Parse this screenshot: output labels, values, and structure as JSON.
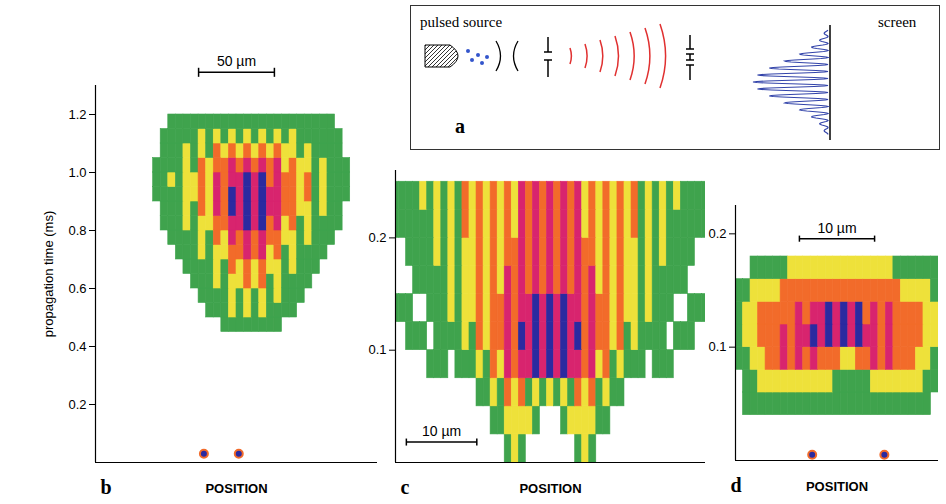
{
  "diagram": {
    "label": "a",
    "source": "pulsed source",
    "screen": "screen"
  },
  "chart_data": [
    {
      "type": "heatmap",
      "label": "b",
      "ylabel": "propagation time (ms)",
      "xlabel": "POSITION",
      "xlim": [
        -83,
        103
      ],
      "ylim": [
        0,
        1.3
      ],
      "yticks": [
        0.2,
        0.4,
        0.6,
        0.8,
        {
          "value": 1,
          "label": "1.0"
        },
        1.2
      ],
      "tick_labels": "y",
      "colors": [
        "#3fa34d",
        "#eee13a",
        "#f26b2a",
        "#d8246e",
        "#2b2aa0"
      ],
      "x_edges": [
        -50,
        -45,
        -40,
        -35,
        -30,
        -25,
        -20,
        -15,
        -10,
        -5,
        0,
        5,
        10,
        15,
        20,
        25,
        30,
        35,
        40,
        45,
        50,
        55,
        60,
        65,
        70,
        75,
        80,
        85,
        90
      ],
      "y_edges": [
        0.45,
        0.5,
        0.55,
        0.6,
        0.65,
        0.7,
        0.75,
        0.8,
        0.85,
        0.9,
        0.95,
        1,
        1.05,
        1.1,
        1.15,
        1.2
      ],
      "values": [
        [
          0,
          0,
          0,
          0,
          0,
          0,
          0,
          0,
          0,
          0,
          1,
          1,
          1,
          1,
          1,
          1,
          1,
          1,
          0,
          0,
          0,
          0,
          0,
          0,
          0,
          0,
          0,
          0
        ],
        [
          0,
          0,
          0,
          0,
          0,
          0,
          0,
          0,
          1,
          1,
          1,
          2,
          1,
          2,
          1,
          2,
          1,
          1,
          1,
          1,
          0,
          0,
          0,
          0,
          0,
          0,
          0,
          0
        ],
        [
          0,
          0,
          0,
          0,
          0,
          0,
          0,
          1,
          1,
          1,
          1,
          2,
          1,
          2,
          1,
          2,
          1,
          2,
          1,
          1,
          1,
          0,
          0,
          0,
          0,
          0,
          0,
          0
        ],
        [
          0,
          0,
          0,
          0,
          0,
          0,
          1,
          1,
          1,
          2,
          1,
          2,
          2,
          3,
          2,
          3,
          1,
          2,
          1,
          1,
          1,
          1,
          0,
          0,
          0,
          0,
          0,
          0
        ],
        [
          0,
          0,
          0,
          0,
          0,
          1,
          1,
          1,
          1,
          2,
          1,
          3,
          2,
          3,
          2,
          3,
          2,
          2,
          1,
          2,
          1,
          1,
          1,
          0,
          0,
          0,
          0,
          0
        ],
        [
          0,
          0,
          0,
          0,
          1,
          1,
          1,
          2,
          1,
          2,
          2,
          3,
          3,
          4,
          3,
          4,
          2,
          3,
          1,
          2,
          1,
          1,
          1,
          1,
          0,
          0,
          0,
          0
        ],
        [
          0,
          0,
          0,
          1,
          1,
          1,
          1,
          2,
          1,
          3,
          2,
          4,
          3,
          4,
          3,
          4,
          3,
          3,
          2,
          2,
          1,
          2,
          1,
          1,
          1,
          0,
          0,
          0
        ],
        [
          0,
          0,
          1,
          1,
          1,
          2,
          1,
          2,
          2,
          3,
          3,
          4,
          4,
          5,
          4,
          5,
          3,
          4,
          2,
          3,
          1,
          2,
          1,
          1,
          1,
          1,
          0,
          0
        ],
        [
          0,
          0,
          1,
          1,
          1,
          2,
          1,
          3,
          2,
          4,
          3,
          5,
          4,
          5,
          4,
          5,
          4,
          4,
          3,
          3,
          2,
          2,
          1,
          2,
          1,
          1,
          0,
          0
        ],
        [
          0,
          1,
          1,
          1,
          1,
          2,
          2,
          3,
          2,
          4,
          3,
          5,
          4,
          5,
          4,
          5,
          4,
          4,
          3,
          3,
          2,
          3,
          1,
          2,
          1,
          1,
          1,
          0
        ],
        [
          0,
          1,
          1,
          2,
          1,
          2,
          2,
          3,
          2,
          4,
          3,
          4,
          4,
          5,
          4,
          5,
          3,
          4,
          3,
          3,
          2,
          3,
          1,
          2,
          1,
          1,
          1,
          0
        ],
        [
          0,
          1,
          1,
          1,
          1,
          2,
          1,
          3,
          2,
          3,
          3,
          4,
          3,
          4,
          3,
          4,
          3,
          4,
          2,
          3,
          2,
          2,
          1,
          2,
          1,
          1,
          1,
          0
        ],
        [
          0,
          0,
          1,
          1,
          1,
          2,
          1,
          2,
          1,
          3,
          2,
          3,
          2,
          3,
          2,
          3,
          2,
          3,
          2,
          2,
          1,
          2,
          1,
          1,
          1,
          1,
          0,
          0
        ],
        [
          0,
          0,
          1,
          1,
          1,
          1,
          1,
          2,
          1,
          2,
          1,
          2,
          1,
          2,
          1,
          2,
          1,
          2,
          1,
          2,
          1,
          1,
          1,
          1,
          1,
          1,
          0,
          0
        ],
        [
          0,
          0,
          0,
          1,
          1,
          1,
          1,
          1,
          1,
          1,
          1,
          1,
          1,
          1,
          1,
          1,
          1,
          1,
          1,
          1,
          1,
          1,
          1,
          1,
          1,
          0,
          0,
          0
        ]
      ],
      "sources": {
        "x": [
          -11.5,
          11.5
        ],
        "y": [
          0.03,
          0.03
        ]
      },
      "scale_bar": {
        "value": 50,
        "label": "50 µm"
      }
    },
    {
      "type": "heatmap",
      "label": "c",
      "xlabel": "POSITION",
      "xlim": [
        -22,
        22
      ],
      "ylim": [
        0,
        0.26
      ],
      "yticks": [
        0.1,
        0.2
      ],
      "tick_labels": "y",
      "colors": [
        "#3fa34d",
        "#eee13a",
        "#f26b2a",
        "#d8246e",
        "#2b2aa0"
      ],
      "x_edges": [
        -22.5,
        -21.5,
        -20.5,
        -19.5,
        -18.5,
        -17.5,
        -16.5,
        -15.5,
        -14.5,
        -13.5,
        -12.5,
        -11.5,
        -10.5,
        -9.5,
        -8.5,
        -7.5,
        -6.5,
        -5.5,
        -4.5,
        -3.5,
        -2.5,
        -1.5,
        -0.5,
        0.5,
        1.5,
        2.5,
        3.5,
        4.5,
        5.5,
        6.5,
        7.5,
        8.5,
        9.5,
        10.5,
        11.5,
        12.5,
        13.5,
        14.5,
        15.5,
        16.5,
        17.5,
        18.5,
        19.5,
        20.5,
        21.5,
        22.5
      ],
      "y_edges": [
        0,
        0.025,
        0.05,
        0.075,
        0.1,
        0.125,
        0.15,
        0.175,
        0.2,
        0.225,
        0.25
      ],
      "values": [
        [
          0,
          0,
          0,
          0,
          0,
          0,
          0,
          0,
          0,
          0,
          0,
          0,
          0,
          0,
          0,
          0,
          1,
          2,
          1,
          0,
          0,
          0,
          0,
          0,
          0,
          0,
          1,
          2,
          1,
          0,
          0,
          0,
          0,
          0,
          0,
          0,
          0,
          0,
          0,
          0,
          0,
          0,
          0,
          0,
          0
        ],
        [
          0,
          0,
          0,
          0,
          0,
          0,
          0,
          0,
          0,
          0,
          0,
          0,
          0,
          0,
          1,
          1,
          2,
          2,
          2,
          2,
          1,
          0,
          0,
          0,
          1,
          2,
          2,
          2,
          2,
          1,
          1,
          0,
          0,
          0,
          0,
          0,
          0,
          0,
          0,
          0,
          0,
          0,
          0,
          0,
          0
        ],
        [
          0,
          0,
          0,
          0,
          0,
          0,
          0,
          0,
          0,
          0,
          0,
          0,
          1,
          1,
          2,
          1,
          3,
          2,
          3,
          1,
          2,
          1,
          2,
          1,
          2,
          1,
          3,
          2,
          3,
          1,
          2,
          1,
          1,
          0,
          0,
          0,
          0,
          0,
          0,
          0,
          0,
          0,
          0,
          0,
          0
        ],
        [
          0,
          0,
          0,
          0,
          0,
          1,
          1,
          1,
          0,
          1,
          1,
          1,
          2,
          1,
          3,
          2,
          4,
          3,
          4,
          4,
          5,
          4,
          5,
          4,
          5,
          4,
          4,
          3,
          4,
          2,
          3,
          1,
          2,
          1,
          1,
          1,
          0,
          1,
          1,
          1,
          0,
          0,
          0,
          0,
          0
        ],
        [
          0,
          0,
          1,
          1,
          1,
          0,
          1,
          1,
          1,
          1,
          2,
          1,
          3,
          2,
          3,
          3,
          4,
          3,
          5,
          4,
          5,
          4,
          5,
          4,
          5,
          4,
          5,
          3,
          4,
          3,
          3,
          2,
          3,
          1,
          2,
          1,
          1,
          1,
          1,
          0,
          1,
          1,
          1,
          0,
          0
        ],
        [
          1,
          1,
          1,
          0,
          0,
          1,
          1,
          1,
          2,
          1,
          2,
          2,
          3,
          2,
          3,
          3,
          4,
          3,
          4,
          4,
          5,
          4,
          5,
          4,
          5,
          4,
          4,
          3,
          4,
          3,
          3,
          2,
          3,
          2,
          2,
          1,
          2,
          1,
          1,
          1,
          0,
          0,
          1,
          1,
          1
        ],
        [
          0,
          0,
          0,
          1,
          1,
          1,
          1,
          1,
          2,
          1,
          2,
          2,
          3,
          2,
          3,
          2,
          4,
          3,
          4,
          3,
          4,
          3,
          4,
          3,
          4,
          3,
          4,
          3,
          4,
          2,
          3,
          2,
          3,
          2,
          2,
          1,
          2,
          1,
          1,
          1,
          1,
          1,
          0,
          0,
          0
        ],
        [
          0,
          0,
          1,
          1,
          1,
          1,
          2,
          1,
          2,
          1,
          2,
          2,
          3,
          2,
          3,
          2,
          3,
          3,
          4,
          3,
          4,
          3,
          4,
          3,
          4,
          3,
          4,
          3,
          3,
          2,
          3,
          2,
          3,
          2,
          2,
          1,
          2,
          1,
          2,
          1,
          1,
          1,
          1,
          0,
          0
        ],
        [
          1,
          1,
          1,
          1,
          1,
          1,
          2,
          1,
          2,
          1,
          3,
          2,
          3,
          2,
          3,
          2,
          3,
          2,
          4,
          3,
          4,
          3,
          4,
          3,
          4,
          3,
          4,
          2,
          3,
          2,
          3,
          2,
          3,
          2,
          3,
          1,
          2,
          1,
          2,
          1,
          1,
          1,
          1,
          1,
          1
        ],
        [
          1,
          1,
          1,
          1,
          2,
          1,
          2,
          1,
          2,
          1,
          3,
          2,
          3,
          2,
          3,
          2,
          3,
          2,
          4,
          3,
          4,
          3,
          4,
          3,
          4,
          3,
          4,
          2,
          3,
          2,
          3,
          2,
          3,
          2,
          3,
          1,
          2,
          1,
          2,
          1,
          2,
          1,
          1,
          1,
          1
        ]
      ],
      "scale_bar": {
        "value": 10,
        "label": "10 µm"
      }
    },
    {
      "type": "heatmap",
      "label": "d",
      "xlabel": "POSITION",
      "xlim": [
        -15,
        12
      ],
      "ylim": [
        0,
        0.225
      ],
      "yticks": [
        0.1,
        0.2
      ],
      "tick_labels": "y",
      "colors": [
        "#3fa34d",
        "#eee13a",
        "#f26b2a",
        "#d8246e",
        "#2b2aa0"
      ],
      "x_edges": [
        -15,
        -14,
        -13,
        -12,
        -11,
        -10,
        -9,
        -8,
        -7,
        -6,
        -5,
        -4,
        -3,
        -2,
        -1,
        0,
        1,
        2,
        3,
        4,
        5,
        6,
        7,
        8,
        9,
        10,
        11,
        12
      ],
      "y_edges": [
        0.02,
        0.04,
        0.06,
        0.08,
        0.1,
        0.12,
        0.14,
        0.16,
        0.18
      ],
      "values": [
        [
          0,
          0,
          0,
          0,
          0,
          0,
          0,
          0,
          0,
          0,
          0,
          0,
          0,
          0,
          0,
          0,
          0,
          0,
          0,
          0,
          0,
          0,
          0,
          0,
          0,
          0,
          0
        ],
        [
          0,
          1,
          1,
          1,
          1,
          1,
          1,
          1,
          1,
          1,
          1,
          1,
          1,
          1,
          1,
          1,
          1,
          1,
          1,
          1,
          1,
          1,
          1,
          1,
          1,
          1,
          0
        ],
        [
          0,
          1,
          1,
          2,
          2,
          2,
          2,
          2,
          2,
          2,
          2,
          2,
          2,
          1,
          1,
          1,
          1,
          1,
          2,
          2,
          2,
          2,
          2,
          2,
          2,
          1,
          1
        ],
        [
          1,
          1,
          2,
          2,
          3,
          3,
          4,
          3,
          4,
          3,
          4,
          3,
          3,
          3,
          2,
          2,
          3,
          3,
          4,
          3,
          4,
          3,
          3,
          3,
          2,
          2,
          1
        ],
        [
          1,
          2,
          2,
          3,
          3,
          3,
          4,
          3,
          4,
          4,
          5,
          4,
          5,
          4,
          5,
          4,
          5,
          4,
          4,
          3,
          4,
          3,
          3,
          3,
          3,
          2,
          2
        ],
        [
          1,
          2,
          2,
          3,
          3,
          3,
          3,
          3,
          4,
          3,
          4,
          4,
          5,
          4,
          5,
          4,
          5,
          3,
          4,
          3,
          4,
          3,
          3,
          3,
          3,
          2,
          2
        ],
        [
          1,
          1,
          2,
          2,
          2,
          2,
          3,
          3,
          3,
          3,
          3,
          3,
          3,
          3,
          3,
          3,
          3,
          3,
          3,
          3,
          3,
          3,
          2,
          2,
          2,
          2,
          1
        ],
        [
          0,
          0,
          1,
          1,
          1,
          1,
          1,
          2,
          2,
          2,
          2,
          2,
          2,
          2,
          2,
          2,
          2,
          2,
          2,
          2,
          2,
          1,
          1,
          1,
          1,
          1,
          1
        ]
      ],
      "sources": {
        "x": [
          -4.8,
          4.8
        ],
        "y": [
          0.005,
          0.005
        ]
      },
      "scale_bar": {
        "value": 10,
        "label": "10 µm"
      }
    }
  ]
}
